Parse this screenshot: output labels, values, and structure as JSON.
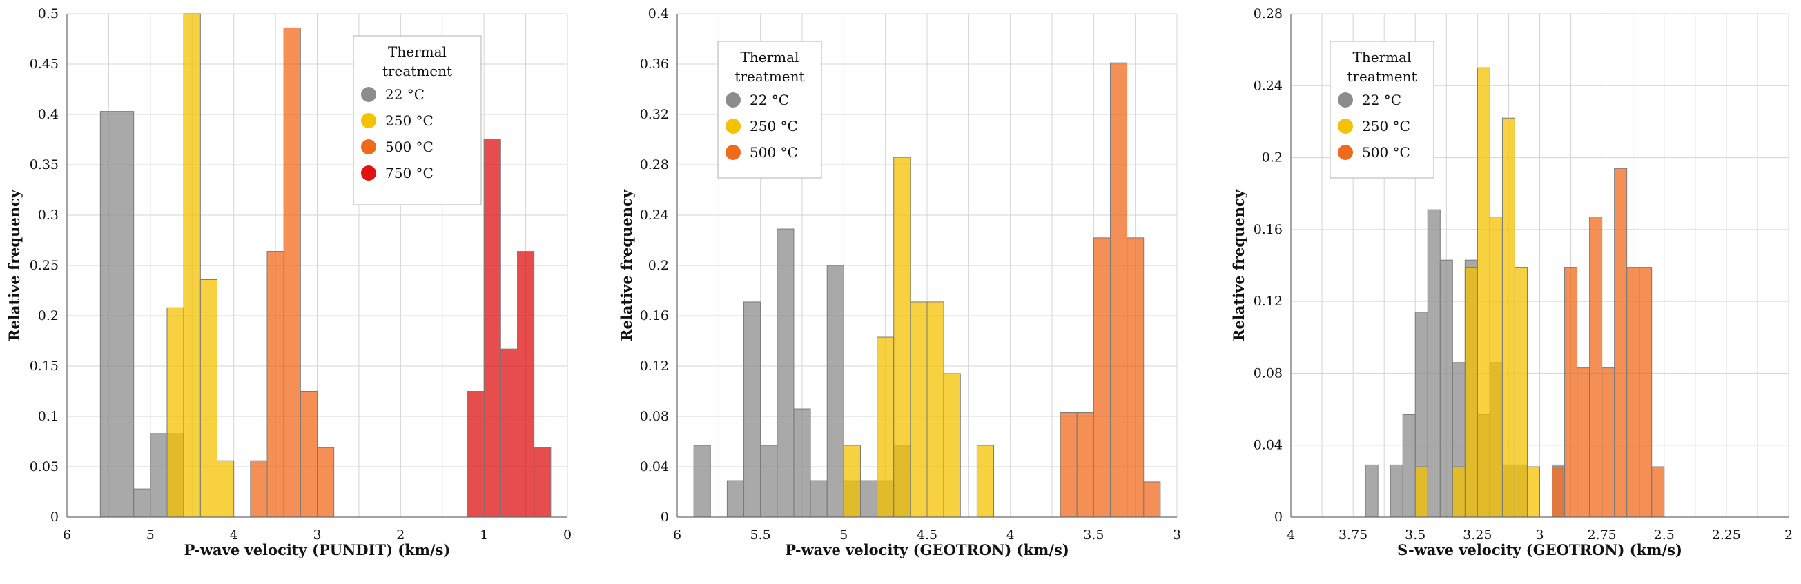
{
  "chart_data": [
    {
      "type": "bar",
      "xlabel": "P-wave velocity (PUNDIT) (km/s)",
      "ylabel": "Relative frequency",
      "xlim": [
        6,
        0
      ],
      "ylim": [
        0,
        0.5
      ],
      "xticks": [
        6,
        5,
        4,
        3,
        2,
        1,
        0
      ],
      "yticks": [
        0,
        0.05,
        0.1,
        0.15,
        0.2,
        0.25,
        0.3,
        0.35,
        0.4,
        0.45,
        0.5
      ],
      "bin_width": 0.2,
      "legend": {
        "title_line1": "Thermal",
        "title_line2": "treatment",
        "position": "top-center"
      },
      "series": [
        {
          "name": "22 °C",
          "color": "#8c8c8c",
          "bins": [
            [
              5.6,
              0.403
            ],
            [
              5.4,
              0.403
            ],
            [
              5.2,
              0.028
            ],
            [
              5.0,
              0.083
            ],
            [
              4.8,
              0.083
            ]
          ]
        },
        {
          "name": "250 °C",
          "color": "#f5c200",
          "bins": [
            [
              4.8,
              0.208
            ],
            [
              4.6,
              0.5
            ],
            [
              4.4,
              0.236
            ],
            [
              4.2,
              0.056
            ]
          ]
        },
        {
          "name": "500 °C",
          "color": "#f06a1c",
          "bins": [
            [
              3.8,
              0.056
            ],
            [
              3.6,
              0.264
            ],
            [
              3.4,
              0.486
            ],
            [
              3.2,
              0.125
            ],
            [
              3.0,
              0.069
            ]
          ]
        },
        {
          "name": "750 °C",
          "color": "#e01212",
          "bins": [
            [
              1.2,
              0.125
            ],
            [
              1.0,
              0.375
            ],
            [
              0.8,
              0.167
            ],
            [
              0.6,
              0.264
            ],
            [
              0.4,
              0.069
            ]
          ]
        }
      ]
    },
    {
      "type": "bar",
      "xlabel": "P-wave velocity (GEOTRON) (km/s)",
      "ylabel": "Relative frequency",
      "xlim": [
        6,
        3
      ],
      "ylim": [
        0,
        0.4
      ],
      "xticks": [
        6,
        5.5,
        5,
        4.5,
        4,
        3.5,
        3
      ],
      "yticks": [
        0,
        0.04,
        0.08,
        0.12,
        0.16,
        0.2,
        0.24,
        0.28,
        0.32,
        0.36,
        0.4
      ],
      "bin_width": 0.1,
      "legend": {
        "title_line1": "Thermal",
        "title_line2": "treatment",
        "position": "top-left"
      },
      "series": [
        {
          "name": "22 °C",
          "color": "#8c8c8c",
          "bins": [
            [
              5.9,
              0.057
            ],
            [
              5.7,
              0.029
            ],
            [
              5.6,
              0.171
            ],
            [
              5.5,
              0.057
            ],
            [
              5.4,
              0.229
            ],
            [
              5.3,
              0.086
            ],
            [
              5.2,
              0.029
            ],
            [
              5.1,
              0.2
            ],
            [
              5.0,
              0.029
            ],
            [
              4.9,
              0.029
            ],
            [
              4.8,
              0.029
            ],
            [
              4.7,
              0.057
            ]
          ]
        },
        {
          "name": "250 °C",
          "color": "#f5c200",
          "bins": [
            [
              5.0,
              0.057
            ],
            [
              4.8,
              0.143
            ],
            [
              4.7,
              0.286
            ],
            [
              4.6,
              0.171
            ],
            [
              4.5,
              0.171
            ],
            [
              4.4,
              0.114
            ],
            [
              4.2,
              0.057
            ]
          ]
        },
        {
          "name": "500 °C",
          "color": "#f06a1c",
          "bins": [
            [
              3.7,
              0.083
            ],
            [
              3.6,
              0.083
            ],
            [
              3.5,
              0.222
            ],
            [
              3.4,
              0.361
            ],
            [
              3.3,
              0.222
            ],
            [
              3.2,
              0.028
            ]
          ]
        }
      ]
    },
    {
      "type": "bar",
      "xlabel": "S-wave velocity (GEOTRON) (km/s)",
      "ylabel": "Relative frequency",
      "xlim": [
        4,
        2
      ],
      "ylim": [
        0,
        0.28
      ],
      "xticks": [
        4,
        3.75,
        3.5,
        3.25,
        3,
        2.75,
        2.5,
        2.25,
        2
      ],
      "yticks": [
        0,
        0.04,
        0.08,
        0.12,
        0.16,
        0.2,
        0.24,
        0.28
      ],
      "bin_width": 0.05,
      "legend": {
        "title_line1": "Thermal",
        "title_line2": "treatment",
        "position": "top-left"
      },
      "series": [
        {
          "name": "22 °C",
          "color": "#8c8c8c",
          "bins": [
            [
              3.7,
              0.029
            ],
            [
              3.6,
              0.029
            ],
            [
              3.55,
              0.057
            ],
            [
              3.5,
              0.114
            ],
            [
              3.45,
              0.171
            ],
            [
              3.4,
              0.143
            ],
            [
              3.35,
              0.086
            ],
            [
              3.3,
              0.143
            ],
            [
              3.25,
              0.057
            ],
            [
              3.2,
              0.086
            ],
            [
              3.15,
              0.029
            ],
            [
              3.1,
              0.029
            ],
            [
              2.95,
              0.029
            ]
          ]
        },
        {
          "name": "250 °C",
          "color": "#f5c200",
          "bins": [
            [
              3.5,
              0.028
            ],
            [
              3.35,
              0.028
            ],
            [
              3.3,
              0.139
            ],
            [
              3.25,
              0.25
            ],
            [
              3.2,
              0.167
            ],
            [
              3.15,
              0.222
            ],
            [
              3.1,
              0.139
            ],
            [
              3.05,
              0.028
            ]
          ]
        },
        {
          "name": "500 °C",
          "color": "#f06a1c",
          "bins": [
            [
              2.95,
              0.028
            ],
            [
              2.9,
              0.139
            ],
            [
              2.85,
              0.083
            ],
            [
              2.8,
              0.167
            ],
            [
              2.75,
              0.083
            ],
            [
              2.7,
              0.194
            ],
            [
              2.65,
              0.139
            ],
            [
              2.6,
              0.139
            ],
            [
              2.55,
              0.028
            ]
          ]
        }
      ]
    }
  ]
}
